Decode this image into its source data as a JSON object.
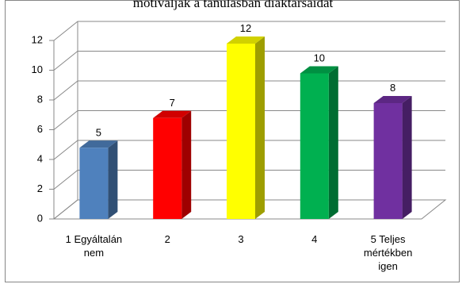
{
  "chart_data": {
    "type": "bar",
    "title": "motiválják a tanulásban diáktársaidat",
    "categories": [
      [
        "1 Egyáltalán",
        "nem"
      ],
      [
        "2"
      ],
      [
        "3"
      ],
      [
        "4"
      ],
      [
        "5 Teljes",
        "mértékben",
        "igen"
      ]
    ],
    "values": [
      5,
      7,
      12,
      10,
      8
    ],
    "data_labels": [
      "5",
      "7",
      "12",
      "10",
      "8"
    ],
    "ylim": [
      0,
      12
    ],
    "yticks": [
      "0",
      "2",
      "4",
      "6",
      "8",
      "10",
      "12"
    ],
    "ytick_values": [
      0,
      2,
      4,
      6,
      8,
      10,
      12
    ],
    "grid": true,
    "legend": "none",
    "colors": {
      "bars": [
        "#4f81bd",
        "#ff0000",
        "#ffff00",
        "#00b050",
        "#7030a0"
      ],
      "grid": "#888888",
      "border": "#868686"
    }
  }
}
